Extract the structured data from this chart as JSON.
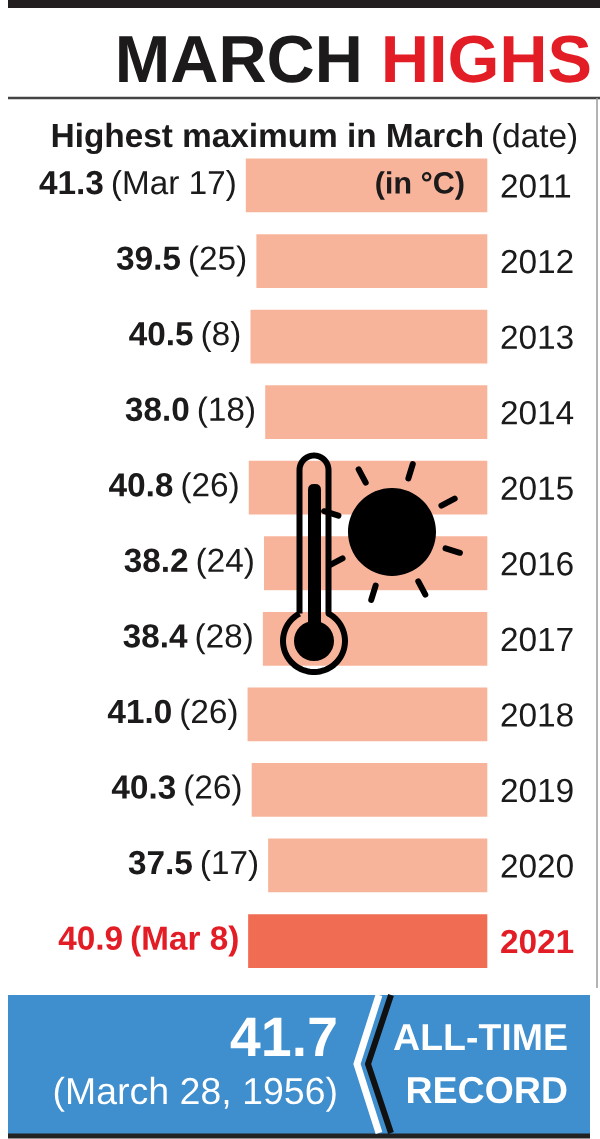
{
  "chart_data": {
    "type": "bar",
    "orientation": "horizontal",
    "title": "MARCH HIGHS",
    "subtitle": "Highest maximum in March (date)",
    "categories": [
      "2011",
      "2012",
      "2013",
      "2014",
      "2015",
      "2016",
      "2017",
      "2018",
      "2019",
      "2020",
      "2021"
    ],
    "values": [
      41.3,
      39.5,
      40.5,
      38.0,
      40.8,
      38.2,
      38.4,
      41.0,
      40.3,
      37.5,
      40.9
    ],
    "colors": [
      "#f7b49b",
      "#f7b49b",
      "#f7b49b",
      "#f7b49b",
      "#f7b49b",
      "#f7b49b",
      "#f7b49b",
      "#f7b49b",
      "#f7b49b",
      "#f7b49b",
      "#f06c52"
    ],
    "value_labels": [
      "41.3 (Mar 17)",
      "39.5 (25)",
      "40.5 (8)",
      "38.0 (18)",
      "40.8 (26)",
      "38.2 (24)",
      "38.4 (28)",
      "41.0 (26)",
      "40.3 (26)",
      "37.5 (17)",
      "40.9 (Mar 8)"
    ],
    "annotations": [
      "(in °C)",
      "ALL-TIME",
      "RECORD",
      "41.7",
      "(March 28, 1956)"
    ],
    "tick_labels": "y"
  }
}
